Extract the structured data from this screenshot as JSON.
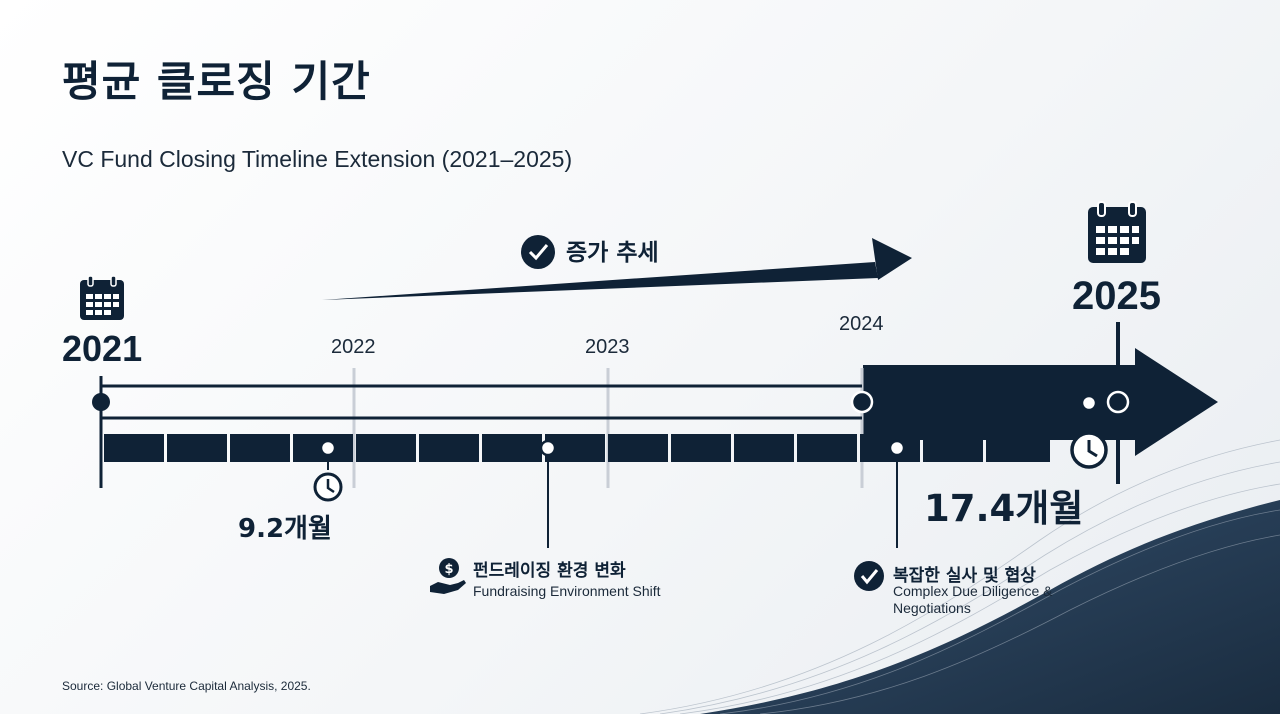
{
  "title": "평균 클로징 기간",
  "subtitle": "VC Fund Closing Timeline Extension (2021–2025)",
  "trend": {
    "label": "증가 추세"
  },
  "timeline": {
    "start_year": "2021",
    "end_year": "2025",
    "mid_years": [
      "2022",
      "2023",
      "2024"
    ]
  },
  "durations": {
    "start": "9.2개월",
    "end": "17.4개월"
  },
  "factors": [
    {
      "title": "펀드레이징 환경 변화",
      "subtitle": "Fundraising Environment Shift",
      "icon": "dollar-hand-icon"
    },
    {
      "title": "복잡한 실사 및 협상",
      "subtitle_line1": "Complex Due Diligence &",
      "subtitle_line2": "Negotiations",
      "icon": "check-circle-icon"
    }
  ],
  "source": "Source: Global Venture Capital Analysis, 2025.",
  "colors": {
    "navy": "#0f2236",
    "gridline": "#c9ced6",
    "background": "#f4f6f8"
  }
}
